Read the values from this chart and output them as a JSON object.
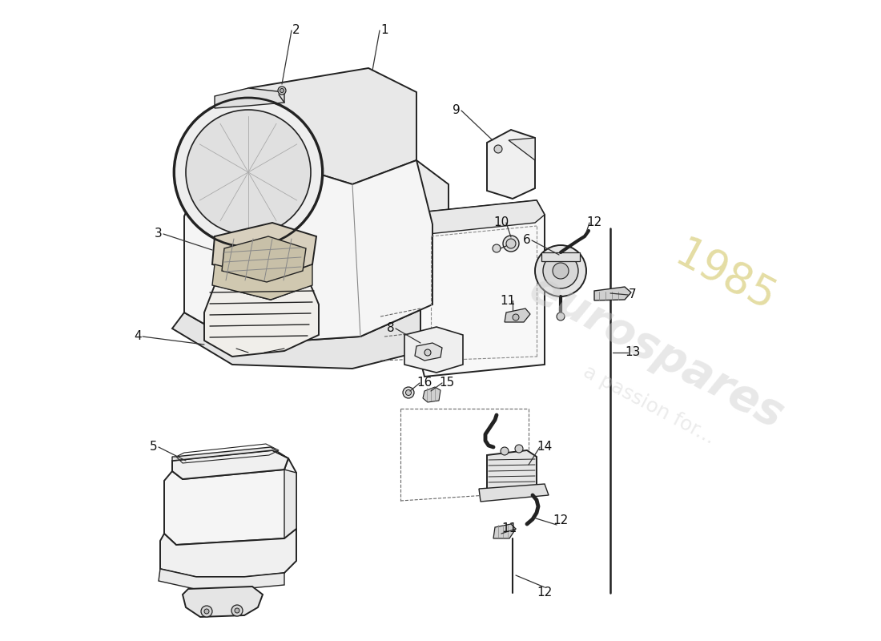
{
  "background_color": "#ffffff",
  "line_color": "#222222",
  "watermark_main": "eurospares",
  "watermark_sub": "a passion for...",
  "watermark_year": "1985",
  "watermark_color": "#cccccc",
  "watermark_year_color": "#c8b840",
  "figsize": [
    11.0,
    8.0
  ],
  "dpi": 100
}
